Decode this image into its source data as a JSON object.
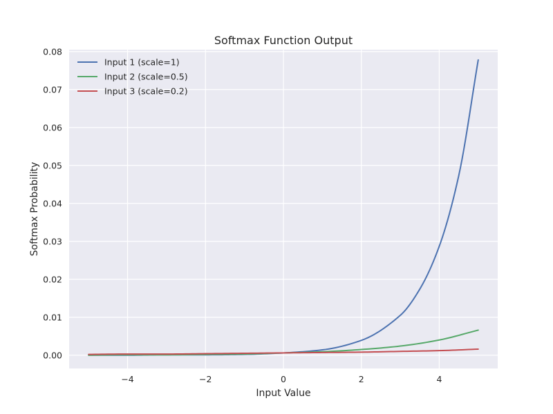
{
  "chart_data": {
    "type": "line",
    "title": "Softmax Function Output",
    "xlabel": "Input Value",
    "ylabel": "Softmax Probability",
    "xlim": [
      -5.5,
      5.5
    ],
    "ylim": [
      -0.0035,
      0.0805
    ],
    "x_ticks": [
      -4,
      -2,
      0,
      2,
      4
    ],
    "x_tick_labels": [
      "−4",
      "−2",
      "0",
      "2",
      "4"
    ],
    "y_ticks": [
      0.0,
      0.01,
      0.02,
      0.03,
      0.04,
      0.05,
      0.06,
      0.07,
      0.08
    ],
    "y_tick_labels": [
      "0.00",
      "0.01",
      "0.02",
      "0.03",
      "0.04",
      "0.05",
      "0.06",
      "0.07",
      "0.08"
    ],
    "grid": true,
    "legend_position": "top-left",
    "background_color": "#eaeaf2",
    "series": [
      {
        "name": "Input 1 (scale=1)",
        "color": "#4c72b0",
        "x": [
          -5,
          -4,
          -3,
          -2,
          -1,
          0,
          1,
          2,
          3,
          3.5,
          4,
          4.5,
          5
        ],
        "values": [
          0.0,
          0.0,
          0.0001,
          0.0001,
          0.0002,
          0.0006,
          0.0014,
          0.0039,
          0.0105,
          0.0174,
          0.0287,
          0.0473,
          0.0778
        ]
      },
      {
        "name": "Input 2 (scale=0.5)",
        "color": "#55a868",
        "x": [
          -5,
          -4,
          -3,
          -2,
          -1,
          0,
          1,
          2,
          3,
          4,
          5
        ],
        "values": [
          0.0,
          0.0001,
          0.0001,
          0.0002,
          0.0003,
          0.0006,
          0.0009,
          0.0015,
          0.0024,
          0.004,
          0.0066
        ]
      },
      {
        "name": "Input 3 (scale=0.2)",
        "color": "#c44e52",
        "x": [
          -5,
          -4,
          -3,
          -2,
          -1,
          0,
          1,
          2,
          3,
          4,
          5
        ],
        "values": [
          0.0002,
          0.0003,
          0.0003,
          0.0004,
          0.0005,
          0.0006,
          0.0007,
          0.0008,
          0.001,
          0.0012,
          0.0016
        ]
      }
    ]
  }
}
